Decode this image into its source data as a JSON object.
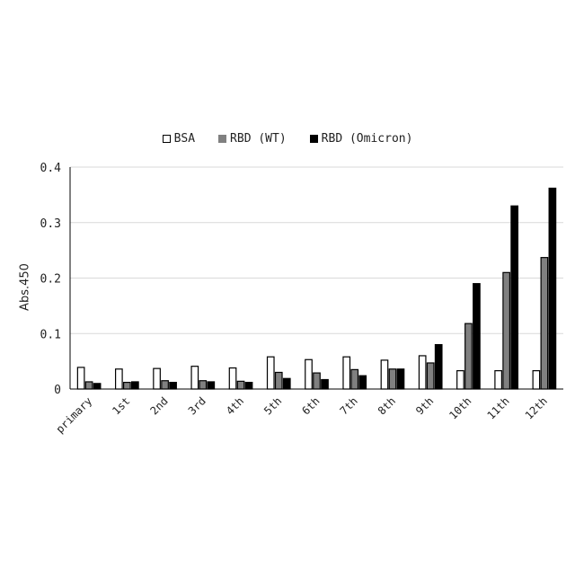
{
  "chart_data": {
    "type": "bar",
    "title": "",
    "xlabel": "",
    "ylabel": "Abs.450",
    "ylim": [
      0,
      0.4
    ],
    "yticks": [
      "0",
      "0.1",
      "0.2",
      "0.3",
      "0.4"
    ],
    "grid": true,
    "legend_position": "top",
    "categories": [
      "primary",
      "1st",
      "2nd",
      "3rd",
      "4th",
      "5th",
      "6th",
      "7th",
      "8th",
      "9th",
      "10th",
      "11th",
      "12th"
    ],
    "series": [
      {
        "name": "BSA",
        "color": "#ffffff",
        "values": [
          0.039,
          0.036,
          0.037,
          0.041,
          0.038,
          0.058,
          0.053,
          0.058,
          0.052,
          0.06,
          0.033,
          0.033,
          0.033
        ]
      },
      {
        "name": "RBD (WT)",
        "color": "#808080",
        "values": [
          0.013,
          0.012,
          0.015,
          0.015,
          0.014,
          0.03,
          0.029,
          0.035,
          0.036,
          0.047,
          0.118,
          0.21,
          0.237
        ]
      },
      {
        "name": "RBD (Omicron)",
        "color": "#000000",
        "values": [
          0.01,
          0.013,
          0.012,
          0.013,
          0.012,
          0.019,
          0.017,
          0.024,
          0.036,
          0.08,
          0.19,
          0.33,
          0.362
        ]
      }
    ]
  }
}
